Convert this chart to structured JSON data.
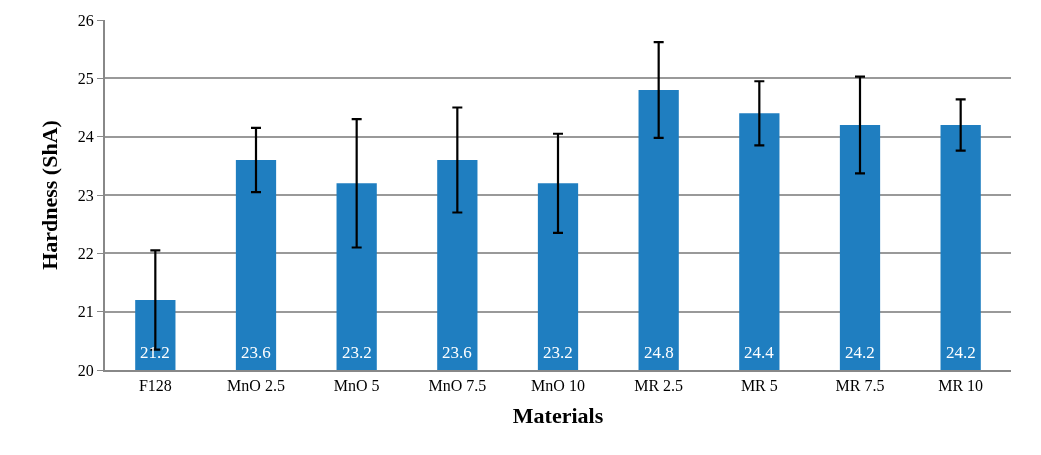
{
  "chart_data": {
    "type": "bar",
    "xlabel": "Materials",
    "ylabel": "Hardness (ShA)",
    "categories": [
      "F128",
      "MnO 2.5",
      "MnO 5",
      "MnO 7.5",
      "MnO 10",
      "MR 2.5",
      "MR 5",
      "MR 7.5",
      "MR 10"
    ],
    "values": [
      21.2,
      23.6,
      23.2,
      23.6,
      23.2,
      24.8,
      24.4,
      24.2,
      24.2
    ],
    "errors": [
      0.85,
      0.55,
      1.1,
      0.9,
      0.85,
      0.82,
      0.55,
      0.83,
      0.44
    ],
    "color": "#1f7ec0",
    "ylim": [
      20,
      26
    ],
    "yticks": [
      20,
      21,
      22,
      23,
      24,
      25,
      26
    ],
    "grid": "y",
    "data_labels": true
  }
}
